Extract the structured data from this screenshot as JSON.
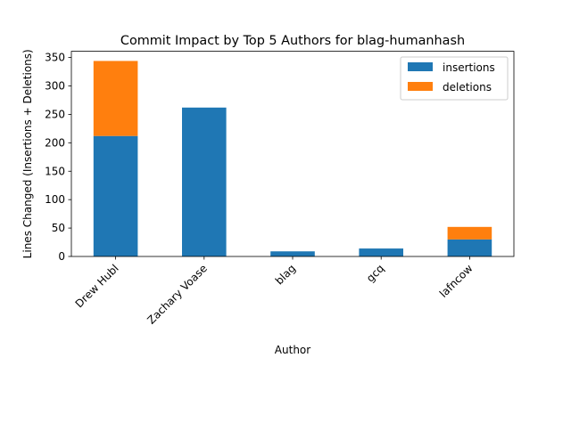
{
  "chart_data": {
    "type": "bar",
    "stacked": true,
    "title": "Commit Impact by Top 5 Authors for blag-humanhash",
    "xlabel": "Author",
    "ylabel": "Lines Changed (Insertions + Deletions)",
    "categories": [
      "Drew Hubl",
      "Zachary Voase",
      "blag",
      "gcq",
      "lafncow"
    ],
    "series": [
      {
        "name": "insertions",
        "color": "#1f77b4",
        "values": [
          212,
          262,
          9,
          14,
          30
        ]
      },
      {
        "name": "deletions",
        "color": "#ff7f0e",
        "values": [
          132,
          0,
          0,
          0,
          22
        ]
      }
    ],
    "ylim": [
      0,
      361
    ],
    "yticks": [
      0,
      50,
      100,
      150,
      200,
      250,
      300,
      350
    ],
    "legend_position": "top-right",
    "grid": false
  }
}
